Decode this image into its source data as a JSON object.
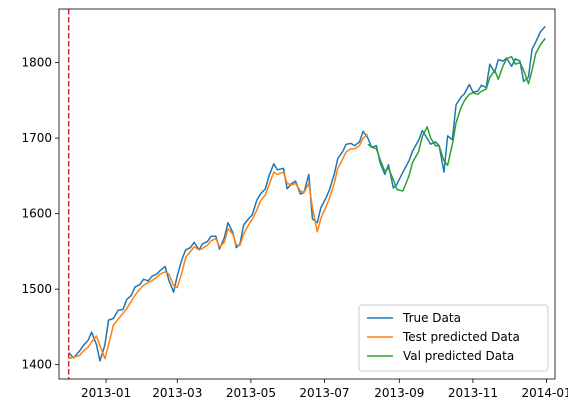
{
  "chart_data": {
    "type": "line",
    "title": "",
    "xlabel": "",
    "ylabel": "",
    "xlim": [
      "2012-11-23",
      "2014-01-08"
    ],
    "ylim": [
      1381,
      1871
    ],
    "grid": false,
    "legend_position": "lower-right",
    "xticks": [
      "2013-01",
      "2013-03",
      "2013-05",
      "2013-07",
      "2013-09",
      "2013-11",
      "2014-01"
    ],
    "xtick_dates": [
      "2013-01-01",
      "2013-03-01",
      "2013-05-01",
      "2013-07-01",
      "2013-09-01",
      "2013-11-01",
      "2014-01-01"
    ],
    "yticks": [
      "1400",
      "1500",
      "1600",
      "1700",
      "1800"
    ],
    "ytick_values": [
      1400,
      1500,
      1600,
      1700,
      1800
    ],
    "vline": {
      "x": "2012-12-01",
      "color": "#d62728",
      "style": "dashed"
    },
    "series": [
      {
        "name": "True Data",
        "color": "#1f77b4",
        "points": [
          [
            "2012-12-01",
            1416
          ],
          [
            "2012-12-05",
            1409
          ],
          [
            "2012-12-10",
            1418
          ],
          [
            "2012-12-13",
            1425
          ],
          [
            "2012-12-17",
            1432
          ],
          [
            "2012-12-20",
            1443
          ],
          [
            "2012-12-24",
            1427
          ],
          [
            "2012-12-27",
            1405
          ],
          [
            "2012-12-31",
            1426
          ],
          [
            "2013-01-03",
            1459
          ],
          [
            "2013-01-07",
            1461
          ],
          [
            "2013-01-11",
            1472
          ],
          [
            "2013-01-15",
            1473
          ],
          [
            "2013-01-18",
            1486
          ],
          [
            "2013-01-22",
            1492
          ],
          [
            "2013-01-25",
            1503
          ],
          [
            "2013-01-29",
            1506
          ],
          [
            "2013-02-01",
            1513
          ],
          [
            "2013-02-05",
            1511
          ],
          [
            "2013-02-08",
            1517
          ],
          [
            "2013-02-12",
            1520
          ],
          [
            "2013-02-15",
            1525
          ],
          [
            "2013-02-19",
            1530
          ],
          [
            "2013-02-22",
            1512
          ],
          [
            "2013-02-26",
            1496
          ],
          [
            "2013-03-01",
            1518
          ],
          [
            "2013-03-05",
            1540
          ],
          [
            "2013-03-08",
            1552
          ],
          [
            "2013-03-12",
            1555
          ],
          [
            "2013-03-15",
            1562
          ],
          [
            "2013-03-19",
            1552
          ],
          [
            "2013-03-22",
            1560
          ],
          [
            "2013-03-26",
            1563
          ],
          [
            "2013-03-29",
            1570
          ],
          [
            "2013-04-02",
            1570
          ],
          [
            "2013-04-05",
            1553
          ],
          [
            "2013-04-09",
            1568
          ],
          [
            "2013-04-12",
            1588
          ],
          [
            "2013-04-16",
            1575
          ],
          [
            "2013-04-19",
            1555
          ],
          [
            "2013-04-22",
            1560
          ],
          [
            "2013-04-25",
            1585
          ],
          [
            "2013-04-29",
            1593
          ],
          [
            "2013-05-02",
            1598
          ],
          [
            "2013-05-06",
            1618
          ],
          [
            "2013-05-09",
            1626
          ],
          [
            "2013-05-13",
            1633
          ],
          [
            "2013-05-16",
            1650
          ],
          [
            "2013-05-20",
            1666
          ],
          [
            "2013-05-23",
            1658
          ],
          [
            "2013-05-28",
            1660
          ],
          [
            "2013-05-31",
            1633
          ],
          [
            "2013-06-04",
            1640
          ],
          [
            "2013-06-07",
            1643
          ],
          [
            "2013-06-11",
            1626
          ],
          [
            "2013-06-14",
            1628
          ],
          [
            "2013-06-18",
            1652
          ],
          [
            "2013-06-21",
            1593
          ],
          [
            "2013-06-25",
            1588
          ],
          [
            "2013-06-28",
            1608
          ],
          [
            "2013-07-02",
            1620
          ],
          [
            "2013-07-05",
            1631
          ],
          [
            "2013-07-09",
            1652
          ],
          [
            "2013-07-12",
            1673
          ],
          [
            "2013-07-16",
            1682
          ],
          [
            "2013-07-19",
            1692
          ],
          [
            "2013-07-23",
            1693
          ],
          [
            "2013-07-26",
            1690
          ],
          [
            "2013-07-30",
            1695
          ],
          [
            "2013-08-02",
            1709
          ],
          [
            "2013-08-06",
            1700
          ],
          [
            "2013-08-09",
            1688
          ],
          [
            "2013-08-13",
            1690
          ],
          [
            "2013-08-16",
            1668
          ],
          [
            "2013-08-20",
            1652
          ],
          [
            "2013-08-23",
            1665
          ],
          [
            "2013-08-27",
            1634
          ],
          [
            "2013-08-30",
            1639
          ],
          [
            "2013-09-04",
            1655
          ],
          [
            "2013-09-09",
            1670
          ],
          [
            "2013-09-12",
            1683
          ],
          [
            "2013-09-17",
            1697
          ],
          [
            "2013-09-20",
            1710
          ],
          [
            "2013-09-24",
            1700
          ],
          [
            "2013-09-27",
            1692
          ],
          [
            "2013-10-01",
            1695
          ],
          [
            "2013-10-04",
            1690
          ],
          [
            "2013-10-08",
            1655
          ],
          [
            "2013-10-11",
            1703
          ],
          [
            "2013-10-15",
            1698
          ],
          [
            "2013-10-18",
            1744
          ],
          [
            "2013-10-22",
            1754
          ],
          [
            "2013-10-25",
            1759
          ],
          [
            "2013-10-29",
            1771
          ],
          [
            "2013-11-01",
            1761
          ],
          [
            "2013-11-05",
            1762
          ],
          [
            "2013-11-08",
            1770
          ],
          [
            "2013-11-12",
            1767
          ],
          [
            "2013-11-15",
            1798
          ],
          [
            "2013-11-19",
            1787
          ],
          [
            "2013-11-22",
            1804
          ],
          [
            "2013-11-26",
            1802
          ],
          [
            "2013-11-29",
            1806
          ],
          [
            "2013-12-03",
            1795
          ],
          [
            "2013-12-06",
            1805
          ],
          [
            "2013-12-10",
            1802
          ],
          [
            "2013-12-13",
            1775
          ],
          [
            "2013-12-17",
            1781
          ],
          [
            "2013-12-20",
            1818
          ],
          [
            "2013-12-23",
            1827
          ],
          [
            "2013-12-27",
            1841
          ],
          [
            "2013-12-31",
            1848
          ]
        ]
      },
      {
        "name": "Test predicted Data",
        "color": "#ff7f0e",
        "points": [
          [
            "2012-12-01",
            1408
          ],
          [
            "2012-12-05",
            1410
          ],
          [
            "2012-12-10",
            1412
          ],
          [
            "2012-12-13",
            1418
          ],
          [
            "2012-12-17",
            1423
          ],
          [
            "2012-12-20",
            1430
          ],
          [
            "2012-12-24",
            1438
          ],
          [
            "2012-12-27",
            1425
          ],
          [
            "2012-12-31",
            1408
          ],
          [
            "2013-01-03",
            1426
          ],
          [
            "2013-01-07",
            1452
          ],
          [
            "2013-01-11",
            1460
          ],
          [
            "2013-01-15",
            1468
          ],
          [
            "2013-01-18",
            1474
          ],
          [
            "2013-01-22",
            1484
          ],
          [
            "2013-01-25",
            1492
          ],
          [
            "2013-01-29",
            1500
          ],
          [
            "2013-02-01",
            1505
          ],
          [
            "2013-02-05",
            1509
          ],
          [
            "2013-02-08",
            1511
          ],
          [
            "2013-02-12",
            1516
          ],
          [
            "2013-02-15",
            1520
          ],
          [
            "2013-02-19",
            1523
          ],
          [
            "2013-02-22",
            1520
          ],
          [
            "2013-02-26",
            1505
          ],
          [
            "2013-03-01",
            1502
          ],
          [
            "2013-03-05",
            1523
          ],
          [
            "2013-03-08",
            1542
          ],
          [
            "2013-03-12",
            1550
          ],
          [
            "2013-03-15",
            1556
          ],
          [
            "2013-03-19",
            1552
          ],
          [
            "2013-03-22",
            1554
          ],
          [
            "2013-03-26",
            1558
          ],
          [
            "2013-03-29",
            1564
          ],
          [
            "2013-04-02",
            1567
          ],
          [
            "2013-04-05",
            1556
          ],
          [
            "2013-04-09",
            1562
          ],
          [
            "2013-04-12",
            1580
          ],
          [
            "2013-04-16",
            1573
          ],
          [
            "2013-04-19",
            1558
          ],
          [
            "2013-04-22",
            1558
          ],
          [
            "2013-04-25",
            1573
          ],
          [
            "2013-04-29",
            1585
          ],
          [
            "2013-05-02",
            1592
          ],
          [
            "2013-05-06",
            1605
          ],
          [
            "2013-05-09",
            1617
          ],
          [
            "2013-05-13",
            1625
          ],
          [
            "2013-05-16",
            1638
          ],
          [
            "2013-05-20",
            1655
          ],
          [
            "2013-05-23",
            1652
          ],
          [
            "2013-05-28",
            1655
          ],
          [
            "2013-05-31",
            1640
          ],
          [
            "2013-06-04",
            1638
          ],
          [
            "2013-06-07",
            1640
          ],
          [
            "2013-06-11",
            1630
          ],
          [
            "2013-06-14",
            1628
          ],
          [
            "2013-06-18",
            1640
          ],
          [
            "2013-06-21",
            1608
          ],
          [
            "2013-06-25",
            1576
          ],
          [
            "2013-06-28",
            1594
          ],
          [
            "2013-07-02",
            1608
          ],
          [
            "2013-07-05",
            1620
          ],
          [
            "2013-07-09",
            1640
          ],
          [
            "2013-07-12",
            1660
          ],
          [
            "2013-07-16",
            1672
          ],
          [
            "2013-07-19",
            1682
          ],
          [
            "2013-07-23",
            1686
          ],
          [
            "2013-07-26",
            1686
          ],
          [
            "2013-07-30",
            1690
          ],
          [
            "2013-08-02",
            1700
          ],
          [
            "2013-08-06",
            1705
          ]
        ]
      },
      {
        "name": "Val predicted Data",
        "color": "#2ca02c",
        "points": [
          [
            "2013-08-06",
            1692
          ],
          [
            "2013-08-09",
            1688
          ],
          [
            "2013-08-13",
            1686
          ],
          [
            "2013-08-16",
            1672
          ],
          [
            "2013-08-20",
            1656
          ],
          [
            "2013-08-23",
            1660
          ],
          [
            "2013-08-27",
            1645
          ],
          [
            "2013-08-30",
            1632
          ],
          [
            "2013-09-04",
            1630
          ],
          [
            "2013-09-09",
            1650
          ],
          [
            "2013-09-12",
            1668
          ],
          [
            "2013-09-17",
            1682
          ],
          [
            "2013-09-20",
            1702
          ],
          [
            "2013-09-24",
            1715
          ],
          [
            "2013-09-27",
            1700
          ],
          [
            "2013-10-01",
            1690
          ],
          [
            "2013-10-04",
            1690
          ],
          [
            "2013-10-08",
            1670
          ],
          [
            "2013-10-11",
            1664
          ],
          [
            "2013-10-15",
            1692
          ],
          [
            "2013-10-18",
            1720
          ],
          [
            "2013-10-22",
            1740
          ],
          [
            "2013-10-25",
            1750
          ],
          [
            "2013-10-29",
            1758
          ],
          [
            "2013-11-01",
            1760
          ],
          [
            "2013-11-05",
            1758
          ],
          [
            "2013-11-08",
            1762
          ],
          [
            "2013-11-12",
            1765
          ],
          [
            "2013-11-15",
            1780
          ],
          [
            "2013-11-19",
            1790
          ],
          [
            "2013-11-22",
            1778
          ],
          [
            "2013-11-26",
            1796
          ],
          [
            "2013-11-29",
            1805
          ],
          [
            "2013-12-03",
            1808
          ],
          [
            "2013-12-06",
            1798
          ],
          [
            "2013-12-10",
            1800
          ],
          [
            "2013-12-13",
            1790
          ],
          [
            "2013-12-17",
            1772
          ],
          [
            "2013-12-20",
            1790
          ],
          [
            "2013-12-23",
            1812
          ],
          [
            "2013-12-27",
            1824
          ],
          [
            "2013-12-31",
            1832
          ]
        ]
      }
    ]
  }
}
